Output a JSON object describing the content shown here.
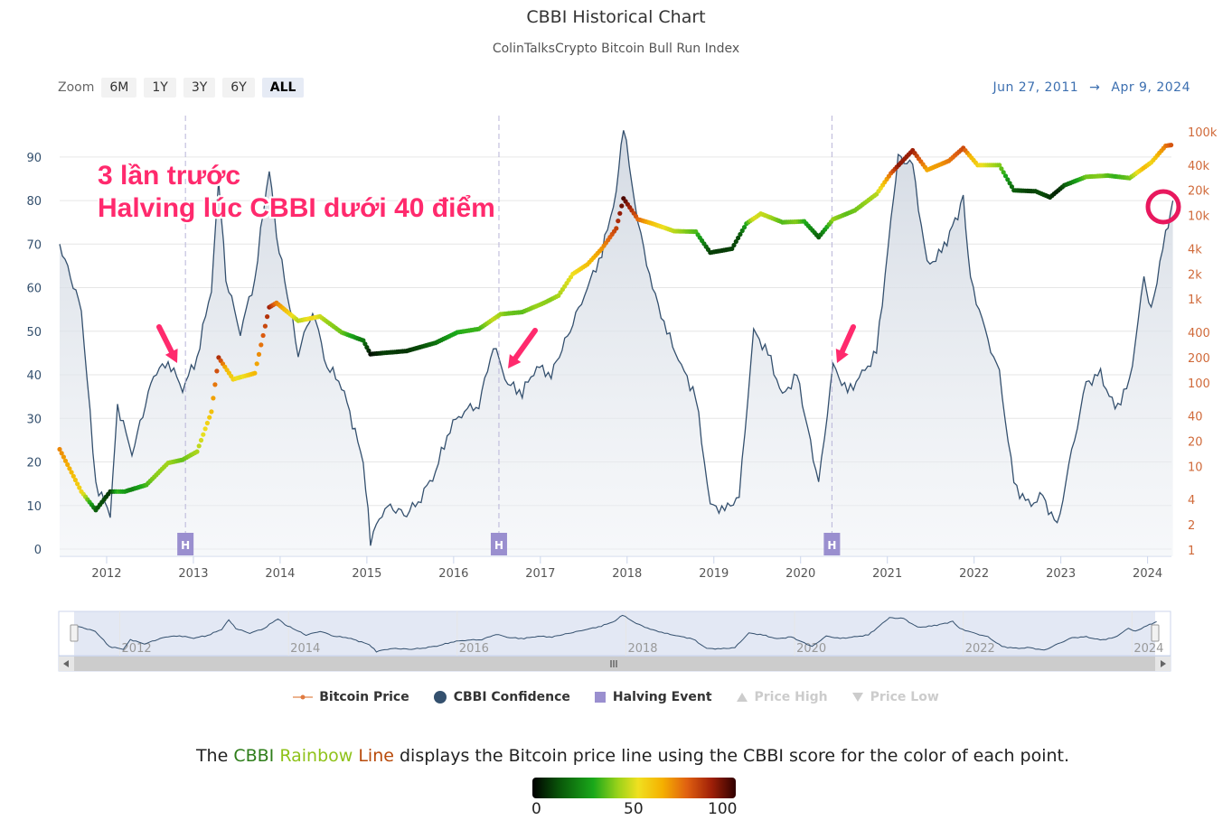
{
  "header": {
    "title": "CBBI Historical Chart",
    "subtitle": "ColinTalksCrypto Bitcoin Bull Run Index"
  },
  "zoom": {
    "label": "Zoom",
    "buttons": [
      "6M",
      "1Y",
      "3Y",
      "6Y",
      "ALL"
    ],
    "active": "ALL"
  },
  "date_range": {
    "from": "Jun 27, 2011",
    "arrow": "→",
    "to": "Apr 9, 2024"
  },
  "annotation": {
    "line1": "3 lần trước",
    "line2": "Halving lúc CBBI dưới 40 điểm"
  },
  "legend": [
    {
      "label": "Bitcoin Price",
      "icon": "line-dot-icon",
      "active": true
    },
    {
      "label": "CBBI Confidence",
      "icon": "circle-icon",
      "active": true
    },
    {
      "label": "Halving Event",
      "icon": "square-icon",
      "active": true
    },
    {
      "label": "Price High",
      "icon": "triangle-up-icon",
      "active": false
    },
    {
      "label": "Price Low",
      "icon": "triangle-down-icon",
      "active": false
    }
  ],
  "caption": {
    "pre": "The ",
    "w1": "CBBI ",
    "w2": "Rainbow ",
    "w3": "Line",
    "post": " displays the Bitcoin price line using the CBBI score for the color of each point."
  },
  "colorbar": {
    "min": "0",
    "mid": "50",
    "max": "100"
  },
  "navigator": {
    "labels": [
      "2012",
      "2014",
      "2016",
      "2018",
      "2020",
      "2022",
      "2024"
    ]
  },
  "colors": {
    "confidence": "#34506e",
    "area": "#d9dee6",
    "halving": "#9a8fcf",
    "annotation": "#ff2a6d",
    "price_axis": "#d06a3a",
    "range_text": "#3c6fb0"
  },
  "chart_data": {
    "type": "line",
    "title": "CBBI Historical Chart",
    "subtitle": "ColinTalksCrypto Bitcoin Bull Run Index",
    "x_ticks": [
      "2012",
      "2013",
      "2014",
      "2015",
      "2016",
      "2017",
      "2018",
      "2019",
      "2020",
      "2021",
      "2022",
      "2023",
      "2024"
    ],
    "y_left_ticks": [
      0,
      10,
      20,
      30,
      40,
      50,
      60,
      70,
      80,
      90
    ],
    "y_right_ticks": [
      "1",
      "2",
      "4",
      "10",
      "20",
      "40",
      "100",
      "200",
      "400",
      "1k",
      "2k",
      "4k",
      "10k",
      "20k",
      "40k",
      "100k"
    ],
    "y_right_scale": "log",
    "halvings": [
      "2012-11-28",
      "2016-07-09",
      "2020-05-11"
    ],
    "halving_label": "H",
    "series": [
      {
        "name": "CBBI Confidence",
        "axis": "left",
        "x": [
          "2011-06",
          "2011-09",
          "2011-11",
          "2012-01",
          "2012-02",
          "2012-04",
          "2012-07",
          "2012-09",
          "2012-11",
          "2013-01",
          "2013-03",
          "2013-04",
          "2013-05",
          "2013-07",
          "2013-09",
          "2013-11",
          "2013-12",
          "2014-03",
          "2014-05",
          "2014-07",
          "2014-09",
          "2014-12",
          "2015-01",
          "2015-03",
          "2015-06",
          "2015-08",
          "2015-10",
          "2015-12",
          "2016-02",
          "2016-04",
          "2016-06",
          "2016-08",
          "2016-10",
          "2016-12",
          "2017-02",
          "2017-05",
          "2017-07",
          "2017-09",
          "2017-11",
          "2017-12",
          "2018-02",
          "2018-04",
          "2018-06",
          "2018-08",
          "2018-10",
          "2018-12",
          "2019-02",
          "2019-04",
          "2019-06",
          "2019-08",
          "2019-10",
          "2019-12",
          "2020-03",
          "2020-05",
          "2020-07",
          "2020-09",
          "2020-11",
          "2021-01",
          "2021-02",
          "2021-04",
          "2021-06",
          "2021-08",
          "2021-11",
          "2021-12",
          "2022-02",
          "2022-04",
          "2022-06",
          "2022-08",
          "2022-10",
          "2022-12",
          "2023-02",
          "2023-04",
          "2023-06",
          "2023-08",
          "2023-10",
          "2023-12",
          "2024-01",
          "2024-03",
          "2024-04"
        ],
        "values": [
          70,
          55,
          15,
          8,
          33,
          22,
          40,
          43,
          37,
          44,
          60,
          85,
          62,
          50,
          62,
          88,
          72,
          45,
          55,
          42,
          38,
          20,
          2,
          10,
          8,
          12,
          18,
          28,
          32,
          33,
          47,
          38,
          36,
          42,
          40,
          52,
          60,
          68,
          82,
          97,
          75,
          60,
          50,
          42,
          35,
          10,
          9,
          12,
          50,
          45,
          35,
          40,
          15,
          42,
          36,
          40,
          45,
          75,
          90,
          88,
          65,
          68,
          80,
          62,
          50,
          40,
          15,
          10,
          12,
          5,
          22,
          38,
          40,
          32,
          38,
          62,
          55,
          72,
          80
        ]
      },
      {
        "name": "Bitcoin Price",
        "axis": "right",
        "x": [
          "2011-06",
          "2011-09",
          "2011-11",
          "2012-01",
          "2012-03",
          "2012-06",
          "2012-09",
          "2012-11",
          "2013-01",
          "2013-03",
          "2013-04",
          "2013-06",
          "2013-09",
          "2013-11",
          "2013-12",
          "2014-03",
          "2014-06",
          "2014-09",
          "2014-12",
          "2015-01",
          "2015-06",
          "2015-10",
          "2016-01",
          "2016-04",
          "2016-07",
          "2016-10",
          "2017-01",
          "2017-03",
          "2017-05",
          "2017-07",
          "2017-09",
          "2017-11",
          "2017-12",
          "2018-02",
          "2018-04",
          "2018-07",
          "2018-10",
          "2018-12",
          "2019-03",
          "2019-05",
          "2019-07",
          "2019-10",
          "2020-01",
          "2020-03",
          "2020-05",
          "2020-08",
          "2020-11",
          "2021-01",
          "2021-04",
          "2021-06",
          "2021-09",
          "2021-11",
          "2022-01",
          "2022-04",
          "2022-06",
          "2022-09",
          "2022-11",
          "2023-01",
          "2023-04",
          "2023-07",
          "2023-10",
          "2024-01",
          "2024-03",
          "2024-04"
        ],
        "values": [
          16,
          5,
          3,
          5,
          5,
          6,
          11,
          12,
          15,
          45,
          200,
          110,
          130,
          800,
          900,
          550,
          620,
          400,
          320,
          220,
          240,
          300,
          400,
          440,
          660,
          700,
          900,
          1100,
          2000,
          2600,
          4000,
          7000,
          16000,
          9000,
          8000,
          6500,
          6400,
          3600,
          4000,
          8000,
          10500,
          8300,
          8500,
          5500,
          9000,
          11500,
          18000,
          32000,
          60000,
          35000,
          45000,
          64000,
          40000,
          40000,
          20000,
          19500,
          16500,
          23000,
          29000,
          30000,
          28000,
          43000,
          68000,
          70000
        ],
        "cbbi_color_scale": [
          0,
          50,
          100
        ]
      }
    ]
  }
}
